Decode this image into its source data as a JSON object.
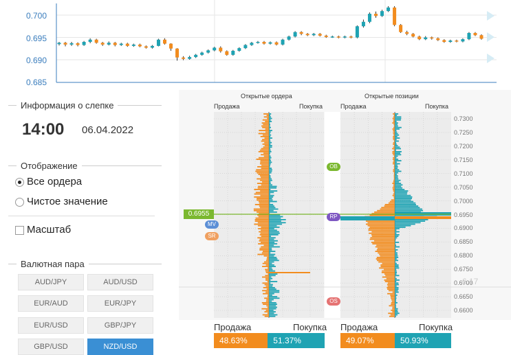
{
  "price_chart": {
    "y_ticks": [
      "0.700",
      "0.695",
      "0.690",
      "0.685"
    ],
    "candles": [
      [
        0.6935,
        0.6938,
        0.694,
        0.6932
      ],
      [
        0.6938,
        0.6934,
        0.694,
        0.693
      ],
      [
        0.6934,
        0.6937,
        0.694,
        0.6931
      ],
      [
        0.6937,
        0.6933,
        0.6939,
        0.693
      ],
      [
        0.6933,
        0.694,
        0.6942,
        0.6931
      ],
      [
        0.694,
        0.6945,
        0.6948,
        0.6937
      ],
      [
        0.6945,
        0.6938,
        0.6947,
        0.6936
      ],
      [
        0.6938,
        0.6934,
        0.694,
        0.6931
      ],
      [
        0.6934,
        0.6938,
        0.6941,
        0.6932
      ],
      [
        0.6938,
        0.6933,
        0.694,
        0.693
      ],
      [
        0.6933,
        0.6936,
        0.6938,
        0.6931
      ],
      [
        0.6936,
        0.6931,
        0.6938,
        0.6929
      ],
      [
        0.6931,
        0.6934,
        0.6936,
        0.6929
      ],
      [
        0.6934,
        0.693,
        0.6936,
        0.6928
      ],
      [
        0.693,
        0.6927,
        0.6932,
        0.6925
      ],
      [
        0.6927,
        0.6931,
        0.6933,
        0.6925
      ],
      [
        0.6931,
        0.6945,
        0.6947,
        0.693
      ],
      [
        0.6945,
        0.6936,
        0.6948,
        0.6934
      ],
      [
        0.6936,
        0.6925,
        0.6937,
        0.692
      ],
      [
        0.6925,
        0.6905,
        0.6926,
        0.6898
      ],
      [
        0.6905,
        0.6902,
        0.6908,
        0.6899
      ],
      [
        0.6902,
        0.6906,
        0.6909,
        0.69
      ],
      [
        0.6906,
        0.6911,
        0.6913,
        0.6904
      ],
      [
        0.6911,
        0.6916,
        0.6918,
        0.6909
      ],
      [
        0.6916,
        0.6921,
        0.6923,
        0.6914
      ],
      [
        0.6921,
        0.6927,
        0.6929,
        0.6919
      ],
      [
        0.6927,
        0.6919,
        0.693,
        0.6916
      ],
      [
        0.6919,
        0.6911,
        0.6921,
        0.6909
      ],
      [
        0.6911,
        0.692,
        0.6922,
        0.6909
      ],
      [
        0.692,
        0.6926,
        0.6928,
        0.6918
      ],
      [
        0.6926,
        0.6933,
        0.6935,
        0.6924
      ],
      [
        0.6933,
        0.6938,
        0.694,
        0.6931
      ],
      [
        0.6938,
        0.694,
        0.6942,
        0.6936
      ],
      [
        0.694,
        0.6936,
        0.6942,
        0.6934
      ],
      [
        0.6936,
        0.6939,
        0.6941,
        0.6934
      ],
      [
        0.6939,
        0.6934,
        0.6941,
        0.6932
      ],
      [
        0.6934,
        0.6945,
        0.6947,
        0.6932
      ],
      [
        0.6945,
        0.6952,
        0.6954,
        0.6943
      ],
      [
        0.6952,
        0.6962,
        0.6964,
        0.695
      ],
      [
        0.6962,
        0.6958,
        0.6964,
        0.6955
      ],
      [
        0.6958,
        0.6955,
        0.696,
        0.6953
      ],
      [
        0.6955,
        0.6958,
        0.696,
        0.6953
      ],
      [
        0.6958,
        0.6954,
        0.696,
        0.6952
      ],
      [
        0.6954,
        0.6951,
        0.6956,
        0.6949
      ],
      [
        0.6951,
        0.6952,
        0.6954,
        0.6949
      ],
      [
        0.6952,
        0.695,
        0.6954,
        0.6948
      ],
      [
        0.695,
        0.6952,
        0.6954,
        0.6948
      ],
      [
        0.6952,
        0.695,
        0.6954,
        0.6948
      ],
      [
        0.695,
        0.6975,
        0.6977,
        0.6948
      ],
      [
        0.6975,
        0.6985,
        0.699,
        0.6972
      ],
      [
        0.6985,
        0.7003,
        0.7006,
        0.6982
      ],
      [
        0.7003,
        0.6998,
        0.7008,
        0.6994
      ],
      [
        0.6998,
        0.7009,
        0.7012,
        0.6996
      ],
      [
        0.7009,
        0.7017,
        0.702,
        0.7007
      ],
      [
        0.7017,
        0.6978,
        0.702,
        0.6975
      ],
      [
        0.6978,
        0.6962,
        0.698,
        0.696
      ],
      [
        0.6962,
        0.6958,
        0.6965,
        0.6955
      ],
      [
        0.6958,
        0.6952,
        0.696,
        0.695
      ],
      [
        0.6952,
        0.6946,
        0.6954,
        0.6944
      ],
      [
        0.6946,
        0.695,
        0.6953,
        0.6944
      ],
      [
        0.695,
        0.6948,
        0.6952,
        0.6945
      ],
      [
        0.6948,
        0.6944,
        0.695,
        0.6942
      ],
      [
        0.6944,
        0.694,
        0.6946,
        0.6938
      ],
      [
        0.694,
        0.6943,
        0.6945,
        0.6938
      ],
      [
        0.6943,
        0.6941,
        0.6945,
        0.6939
      ],
      [
        0.6941,
        0.6946,
        0.6948,
        0.6939
      ],
      [
        0.6946,
        0.696,
        0.6962,
        0.6944
      ],
      [
        0.696,
        0.6955,
        0.6962,
        0.6953
      ],
      [
        0.6955,
        0.6947,
        0.6957,
        0.6945
      ]
    ]
  },
  "snapshot": {
    "title": "Информация о слепке",
    "time": "14:00",
    "date": "06.04.2022"
  },
  "display": {
    "title": "Отображение",
    "opt_all": "Все ордера",
    "opt_net": "Чистое значение",
    "scale": "Масштаб"
  },
  "pairs": {
    "title": "Валютная пара",
    "items": [
      "AUD/JPY",
      "AUD/USD",
      "EUR/AUD",
      "EUR/JPY",
      "EUR/USD",
      "GBP/JPY",
      "GBP/USD",
      "NZD/USD"
    ],
    "active": "NZD/USD"
  },
  "orderbook": {
    "open_orders": "Открытые ордера",
    "open_positions": "Открытые позиции",
    "sell": "Продажа",
    "buy": "Покупка",
    "current_price": "0.6955",
    "watermark": "6.17",
    "price_ticks": [
      "0.7300",
      "0.7250",
      "0.7200",
      "0.7150",
      "0.7100",
      "0.7050",
      "0.7000",
      "0.6950",
      "0.6900",
      "0.6850",
      "0.6800",
      "0.6750",
      "0.6700",
      "0.6650",
      "0.6600"
    ],
    "markers": {
      "ob": "OB",
      "rp": "RP",
      "os": "OS",
      "mv": "MV",
      "sr": "SR"
    },
    "orders_pct": {
      "sell": "48.63%",
      "buy": "51.37%",
      "sell_value": 48.63
    },
    "positions_pct": {
      "sell": "49.07%",
      "buy": "50.93%",
      "sell_value": 49.07
    },
    "colors": {
      "sell": "#f28c1e",
      "buy": "#1fa3b3"
    }
  }
}
